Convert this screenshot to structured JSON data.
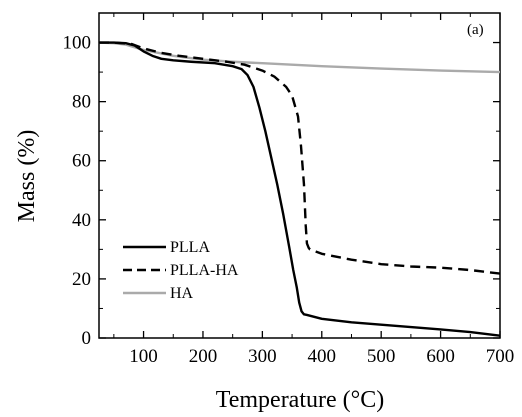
{
  "chart_data": {
    "type": "line",
    "title": "",
    "annotation": "(a)",
    "xlabel": "Temperature (°C)",
    "ylabel": "Mass (%)",
    "xlim": [
      25,
      700
    ],
    "ylim": [
      0,
      110
    ],
    "xticks": [
      100,
      200,
      300,
      400,
      500,
      600,
      700
    ],
    "yticks": [
      0,
      20,
      40,
      60,
      80,
      100
    ],
    "grid": false,
    "legend_position": "bottom-left",
    "series": [
      {
        "name": "PLLA",
        "color": "#000000",
        "style": "solid",
        "x": [
          25,
          50,
          70,
          85,
          100,
          115,
          130,
          150,
          180,
          220,
          250,
          265,
          275,
          285,
          295,
          305,
          315,
          325,
          335,
          345,
          352,
          358,
          362,
          366,
          370,
          375,
          400,
          450,
          500,
          550,
          600,
          650,
          700
        ],
        "y": [
          100,
          100,
          99.8,
          99,
          97,
          95.5,
          94.5,
          94,
          93.5,
          93,
          92,
          91,
          89,
          85,
          78,
          70,
          61,
          52,
          42,
          31,
          23,
          17,
          12,
          9,
          8,
          7.8,
          6.5,
          5.3,
          4.5,
          3.7,
          2.9,
          2,
          0.8
        ]
      },
      {
        "name": "PLLA-HA",
        "color": "#000000",
        "style": "dashed",
        "x": [
          25,
          50,
          80,
          100,
          130,
          160,
          200,
          240,
          270,
          300,
          320,
          340,
          350,
          360,
          365,
          370,
          373,
          375,
          378,
          380,
          400,
          450,
          500,
          550,
          600,
          650,
          700
        ],
        "y": [
          100,
          100,
          99.5,
          98,
          96.5,
          95.5,
          94.5,
          93.5,
          92.5,
          90.5,
          88.5,
          85,
          82,
          75,
          65,
          52,
          38,
          32,
          30.5,
          30,
          28.5,
          26.5,
          25,
          24.2,
          23.8,
          23,
          21.8
        ]
      },
      {
        "name": "HA",
        "color": "#aaaaaa",
        "style": "solid",
        "x": [
          25,
          50,
          70,
          100,
          150,
          200,
          250,
          300,
          400,
          500,
          600,
          700
        ],
        "y": [
          100,
          99.8,
          99.3,
          97.5,
          95.5,
          94.2,
          93.5,
          93,
          92,
          91.2,
          90.5,
          90
        ]
      }
    ]
  }
}
